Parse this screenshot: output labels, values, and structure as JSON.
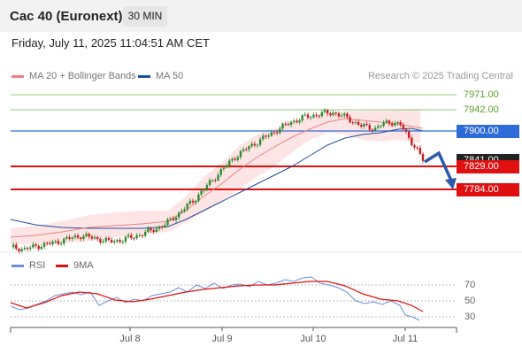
{
  "header": {
    "title": "Cac 40 (Euronext)",
    "timeframe": "30 MIN"
  },
  "datetime": "Friday, July 11, 2025 11:04:51 AM CET",
  "legend": {
    "ma20_label": "MA 20 + Bollinger Bands",
    "ma50_label": "MA 50",
    "credit": "Research © 2025 Trading Central"
  },
  "colors": {
    "ma20": "#f08080",
    "ma50": "#1f4e9e",
    "band_fill": "#fde0e0",
    "green_level": "#5aa02c",
    "blue_level": "#2f6bd8",
    "red_level": "#e01010",
    "candle_up": "#2e8b2e",
    "candle_down": "#c81e1e",
    "rsi": "#6a8fd8",
    "rsi_ma": "#e01010",
    "arrow": "#2a5aa8"
  },
  "levels": {
    "l7971": "7971.00",
    "l7942": "7942.00",
    "l7900": "7900.00",
    "l7841": "7841.00",
    "l7829": "7829.00",
    "l7784": "7784.00"
  },
  "rsi": {
    "rsi_label": "RSI",
    "ma_label": "9MA",
    "ticks": [
      "70",
      "50",
      "30"
    ]
  },
  "x_axis": {
    "labels": [
      "Jul 8",
      "Jul 9",
      "Jul 10",
      "Jul 11"
    ]
  },
  "chart_data": {
    "type": "line",
    "title": "Cac 40 (Euronext)",
    "price_levels": [
      7971,
      7942,
      7900,
      7841,
      7829,
      7784
    ],
    "price_path": [
      [
        0,
        7667
      ],
      [
        5,
        7663
      ],
      [
        10,
        7670
      ],
      [
        15,
        7675
      ],
      [
        20,
        7683
      ],
      [
        25,
        7690
      ],
      [
        30,
        7685
      ],
      [
        35,
        7678
      ],
      [
        40,
        7682
      ],
      [
        45,
        7690
      ],
      [
        50,
        7700
      ],
      [
        55,
        7712
      ],
      [
        60,
        7735
      ],
      [
        65,
        7760
      ],
      [
        70,
        7790
      ],
      [
        75,
        7820
      ],
      [
        80,
        7848
      ],
      [
        85,
        7868
      ],
      [
        90,
        7885
      ],
      [
        95,
        7902
      ],
      [
        100,
        7918
      ],
      [
        105,
        7928
      ],
      [
        110,
        7934
      ],
      [
        115,
        7937
      ],
      [
        120,
        7926
      ],
      [
        125,
        7910
      ],
      [
        130,
        7905
      ],
      [
        133,
        7915
      ],
      [
        136,
        7918
      ],
      [
        139,
        7912
      ],
      [
        142,
        7886
      ],
      [
        145,
        7862
      ],
      [
        147,
        7841
      ]
    ],
    "rsi_values": [
      43,
      44,
      40,
      46,
      52,
      56,
      58,
      55,
      50,
      48,
      46,
      44,
      47,
      52,
      58,
      62,
      63,
      66,
      62,
      60,
      64,
      68,
      66,
      62,
      58,
      56,
      52,
      50,
      46,
      44,
      36,
      28,
      24
    ],
    "rsi_ticks": [
      70,
      50,
      30
    ]
  }
}
